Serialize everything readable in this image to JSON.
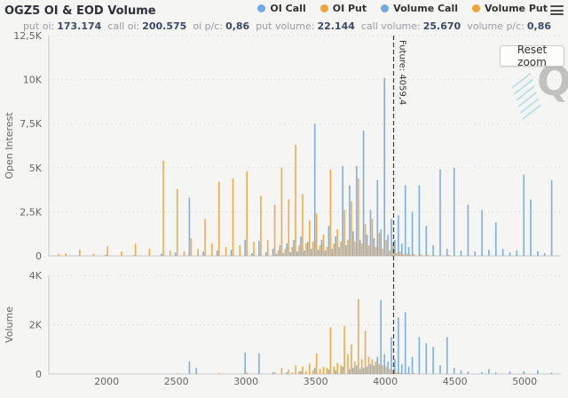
{
  "header": {
    "title": "OGZ5 OI & EOD Volume",
    "legend": [
      {
        "label": "OI Call",
        "color": "#72a8e4"
      },
      {
        "label": "OI Put",
        "color": "#f2a43a"
      },
      {
        "label": "Volume Call",
        "color": "#72a8e4"
      },
      {
        "label": "Volume Put",
        "color": "#f2a43a"
      }
    ]
  },
  "subtitle": {
    "segments": [
      {
        "label": "put oi:",
        "value": "173.174"
      },
      {
        "label": "call oi:",
        "value": "200.575"
      },
      {
        "label": "oi p/c:",
        "value": "0,86"
      },
      {
        "label": "put volume:",
        "value": "22.144"
      },
      {
        "label": "call volume:",
        "value": "25.670"
      },
      {
        "label": "volume p/c:",
        "value": "0,86"
      }
    ]
  },
  "controls": {
    "reset_zoom_label": "Reset zoom"
  },
  "chart_data": {
    "type": "bar",
    "title": "OGZ5 OI & EOD Volume",
    "xlim": [
      1585,
      5260
    ],
    "xticks": [
      2000,
      2500,
      3000,
      3500,
      4000,
      4500,
      5000
    ],
    "xtick_labels": [
      "2000",
      "2500",
      "3000",
      "3500",
      "4000",
      "4500",
      "5000"
    ],
    "grid": "dotted-horizontal",
    "legend_position": "top-right",
    "future_line": {
      "x": 4059.4,
      "label": "Future: 4059,4",
      "style": "dashed"
    },
    "strikes": [
      1650,
      1700,
      1800,
      1900,
      2000,
      2100,
      2200,
      2300,
      2400,
      2450,
      2500,
      2550,
      2600,
      2650,
      2700,
      2750,
      2800,
      2850,
      2900,
      2950,
      3000,
      3050,
      3100,
      3150,
      3200,
      3225,
      3250,
      3275,
      3300,
      3325,
      3350,
      3375,
      3400,
      3425,
      3450,
      3475,
      3500,
      3525,
      3550,
      3575,
      3600,
      3625,
      3650,
      3675,
      3700,
      3725,
      3750,
      3775,
      3800,
      3825,
      3850,
      3875,
      3900,
      3925,
      3950,
      3975,
      4000,
      4025,
      4050,
      4075,
      4100,
      4125,
      4150,
      4175,
      4200,
      4250,
      4300,
      4350,
      4400,
      4450,
      4500,
      4550,
      4600,
      4650,
      4700,
      4750,
      4800,
      4850,
      4900,
      4950,
      5000,
      5050,
      5100,
      5150,
      5200
    ],
    "panels": [
      {
        "name": "Open Interest",
        "ylabel": "Open Interest",
        "ylim": [
          0,
          12500
        ],
        "yticks": [
          0,
          2500,
          5000,
          7500,
          10000,
          12500
        ],
        "ytick_labels": [
          "0",
          "2,5K",
          "5K",
          "7,5K",
          "10K",
          "12,5K"
        ],
        "series": [
          {
            "name": "OI Call",
            "color": "#72a8e4",
            "values": [
              0,
              0,
              0,
              0,
              60,
              0,
              40,
              0,
              120,
              0,
              200,
              0,
              3300,
              0,
              250,
              0,
              300,
              0,
              350,
              0,
              900,
              150,
              850,
              200,
              400,
              100,
              600,
              150,
              700,
              200,
              900,
              250,
              1100,
              300,
              800,
              400,
              7500,
              350,
              900,
              300,
              1700,
              400,
              1100,
              500,
              5100,
              600,
              4000,
              1400,
              5100,
              900,
              7100,
              1200,
              2600,
              1000,
              4300,
              1500,
              10100,
              1200,
              2100,
              900,
              2300,
              700,
              4000,
              500,
              2500,
              4000,
              1700,
              600,
              4900,
              400,
              5000,
              300,
              2900,
              250,
              2600,
              350,
              1900,
              400,
              200,
              300,
              4600,
              3200,
              250,
              150,
              4300
            ]
          },
          {
            "name": "OI Put",
            "color": "#f2a43a",
            "values": [
              100,
              150,
              350,
              120,
              550,
              250,
              700,
              400,
              5400,
              300,
              3800,
              250,
              1000,
              400,
              2100,
              700,
              4200,
              500,
              4400,
              600,
              4800,
              800,
              3400,
              900,
              2900,
              300,
              5000,
              400,
              3200,
              500,
              6300,
              600,
              3500,
              700,
              2000,
              800,
              2400,
              600,
              1200,
              500,
              4900,
              700,
              1500,
              800,
              2600,
              900,
              3100,
              800,
              4400,
              700,
              1800,
              600,
              2100,
              500,
              1300,
              400,
              900,
              300,
              700,
              150,
              250,
              80,
              120,
              60,
              100,
              80,
              60,
              40,
              0,
              50,
              0,
              0,
              0,
              0,
              0,
              0,
              0,
              0,
              0,
              0,
              0,
              0,
              0,
              0,
              0
            ]
          }
        ]
      },
      {
        "name": "Volume",
        "ylabel": "Volume",
        "ylim": [
          0,
          4000
        ],
        "yticks": [
          0,
          2000,
          4000
        ],
        "ytick_labels": [
          "0",
          "2K",
          "4K"
        ],
        "series": [
          {
            "name": "Volume Call",
            "color": "#72a8e4",
            "values": [
              0,
              0,
              0,
              0,
              0,
              0,
              0,
              0,
              0,
              0,
              0,
              0,
              510,
              250,
              0,
              0,
              0,
              0,
              0,
              0,
              870,
              0,
              840,
              0,
              60,
              0,
              0,
              0,
              80,
              0,
              0,
              0,
              120,
              0,
              0,
              0,
              260,
              0,
              0,
              0,
              180,
              0,
              150,
              0,
              300,
              0,
              200,
              250,
              350,
              200,
              250,
              300,
              400,
              350,
              700,
              3000,
              800,
              500,
              1500,
              600,
              2300,
              400,
              2500,
              300,
              700,
              1500,
              1250,
              1100,
              350,
              1500,
              250,
              150,
              100,
              0,
              80,
              200,
              60,
              0,
              100,
              0,
              120,
              0,
              150,
              0,
              60
            ]
          },
          {
            "name": "Volume Put",
            "color": "#f2a43a",
            "values": [
              0,
              0,
              0,
              0,
              0,
              0,
              0,
              0,
              0,
              0,
              30,
              0,
              0,
              0,
              0,
              0,
              40,
              0,
              0,
              0,
              50,
              0,
              0,
              0,
              80,
              0,
              250,
              0,
              180,
              60,
              350,
              100,
              300,
              120,
              420,
              150,
              830,
              200,
              300,
              250,
              1900,
              300,
              450,
              350,
              1960,
              800,
              1200,
              500,
              3050,
              600,
              1750,
              700,
              600,
              500,
              400,
              350,
              300,
              200,
              150,
              80,
              60,
              0,
              40,
              0,
              30,
              0,
              0,
              0,
              0,
              0,
              0,
              0,
              0,
              0,
              0,
              0,
              0,
              0,
              0,
              0,
              0,
              0,
              0,
              0,
              0
            ]
          }
        ]
      }
    ]
  }
}
